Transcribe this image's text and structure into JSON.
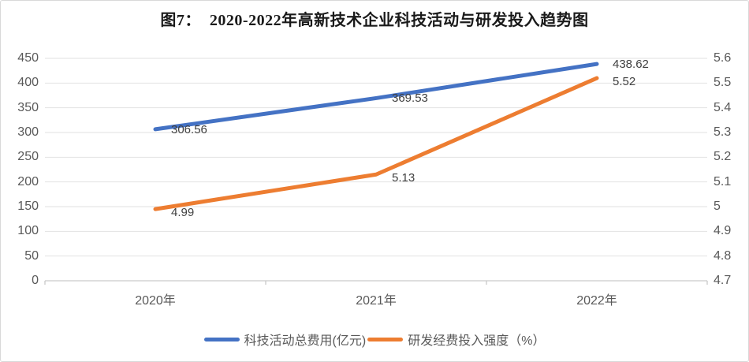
{
  "chart_data": {
    "type": "line",
    "title": "图7：  2020-2022年高新技术企业科技活动与研发投入趋势图",
    "categories": [
      "2020年",
      "2021年",
      "2022年"
    ],
    "series": [
      {
        "name": "科技活动总费用(亿元)",
        "axis": "left",
        "color": "#4472C4",
        "values": [
          306.56,
          369.53,
          438.62
        ],
        "data_labels": [
          "306.56",
          "369.53",
          "438.62"
        ]
      },
      {
        "name": "研发经费投入强度（%）",
        "axis": "right",
        "color": "#ED7D31",
        "values": [
          4.99,
          5.13,
          5.52
        ],
        "data_labels": [
          "4.99",
          "5.13",
          "5.52"
        ]
      }
    ],
    "left_axis": {
      "min": 0,
      "max": 450,
      "step": 50,
      "ticks": [
        "450",
        "400",
        "350",
        "300",
        "250",
        "200",
        "150",
        "100",
        "50",
        "0"
      ]
    },
    "right_axis": {
      "min": 4.7,
      "max": 5.6,
      "step": 0.1,
      "ticks": [
        "5.6",
        "5.5",
        "5.4",
        "5.3",
        "5.2",
        "5.1",
        "5",
        "4.9",
        "4.8",
        "4.7"
      ]
    },
    "grid": true,
    "legend_position": "bottom",
    "colors": {
      "gridline": "#E2E2E2",
      "axis_line": "#C9C9C9",
      "tick_label": "#595959",
      "data_label": "#404040",
      "title": "#1a1a1a"
    }
  }
}
